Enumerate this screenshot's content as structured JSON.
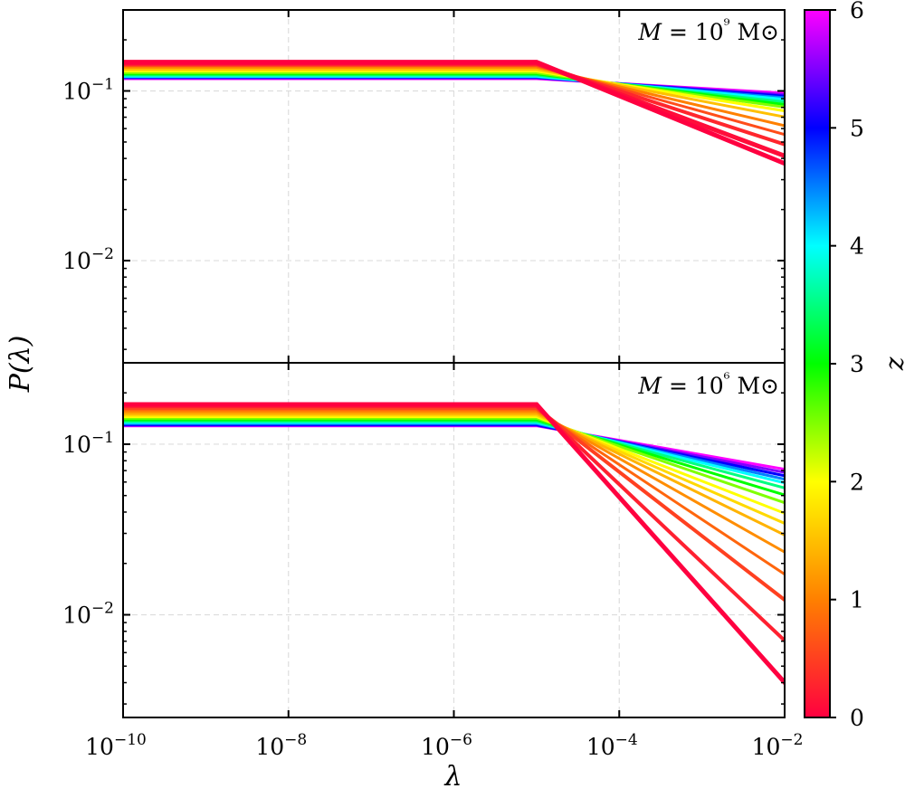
{
  "figure": {
    "ylabel": "P(λ)",
    "xlabel": "λ",
    "colorbar_label": "z"
  },
  "chart_data": [
    {
      "type": "line",
      "panel": "top",
      "annotation": "M = 10⁹ M⊙",
      "x_scale": "log",
      "y_scale": "log",
      "xlim": [
        1e-10,
        0.01
      ],
      "ylim": [
        0.0025,
        0.3
      ],
      "x_ticks": [
        "10−10",
        "10−8",
        "10−6",
        "10−4",
        "10−2"
      ],
      "y_ticks": [
        "10−1",
        "10−2"
      ],
      "grid": true,
      "break_lambda": 1e-05,
      "color_by": "z",
      "curves": [
        {
          "z": 6.0,
          "plateau": 0.118,
          "end": 0.097
        },
        {
          "z": 5.5,
          "plateau": 0.119,
          "end": 0.095
        },
        {
          "z": 5.0,
          "plateau": 0.12,
          "end": 0.093
        },
        {
          "z": 4.5,
          "plateau": 0.121,
          "end": 0.091
        },
        {
          "z": 4.0,
          "plateau": 0.122,
          "end": 0.089
        },
        {
          "z": 3.5,
          "plateau": 0.124,
          "end": 0.086
        },
        {
          "z": 3.0,
          "plateau": 0.126,
          "end": 0.083
        },
        {
          "z": 2.5,
          "plateau": 0.128,
          "end": 0.08
        },
        {
          "z": 2.0,
          "plateau": 0.131,
          "end": 0.076
        },
        {
          "z": 1.5,
          "plateau": 0.134,
          "end": 0.07
        },
        {
          "z": 1.0,
          "plateau": 0.138,
          "end": 0.062
        },
        {
          "z": 0.6,
          "plateau": 0.141,
          "end": 0.055
        },
        {
          "z": 0.3,
          "plateau": 0.144,
          "end": 0.048
        },
        {
          "z": 0.1,
          "plateau": 0.146,
          "end": 0.041
        },
        {
          "z": 0.0,
          "plateau": 0.148,
          "end": 0.037
        }
      ]
    },
    {
      "type": "line",
      "panel": "bottom",
      "annotation": "M = 10⁶ M⊙",
      "x_scale": "log",
      "y_scale": "log",
      "xlim": [
        1e-10,
        0.01
      ],
      "ylim": [
        0.0025,
        0.3
      ],
      "x_ticks": [
        "10−10",
        "10−8",
        "10−6",
        "10−4",
        "10−2"
      ],
      "y_ticks": [
        "10−1",
        "10−2"
      ],
      "grid": true,
      "break_lambda": 1e-05,
      "color_by": "z",
      "curves": [
        {
          "z": 6.0,
          "plateau": 0.128,
          "end": 0.071
        },
        {
          "z": 5.5,
          "plateau": 0.129,
          "end": 0.068
        },
        {
          "z": 5.0,
          "plateau": 0.13,
          "end": 0.065
        },
        {
          "z": 4.5,
          "plateau": 0.132,
          "end": 0.062
        },
        {
          "z": 4.0,
          "plateau": 0.134,
          "end": 0.059
        },
        {
          "z": 3.5,
          "plateau": 0.136,
          "end": 0.055
        },
        {
          "z": 3.0,
          "plateau": 0.139,
          "end": 0.05
        },
        {
          "z": 2.5,
          "plateau": 0.142,
          "end": 0.045
        },
        {
          "z": 2.0,
          "plateau": 0.145,
          "end": 0.039
        },
        {
          "z": 1.7,
          "plateau": 0.148,
          "end": 0.034
        },
        {
          "z": 1.4,
          "plateau": 0.151,
          "end": 0.029
        },
        {
          "z": 1.1,
          "plateau": 0.155,
          "end": 0.023
        },
        {
          "z": 0.8,
          "plateau": 0.159,
          "end": 0.017
        },
        {
          "z": 0.5,
          "plateau": 0.163,
          "end": 0.012
        },
        {
          "z": 0.25,
          "plateau": 0.167,
          "end": 0.0069
        },
        {
          "z": 0.0,
          "plateau": 0.171,
          "end": 0.0039
        }
      ]
    }
  ],
  "colorbar": {
    "label": "z",
    "range": [
      0,
      6
    ],
    "ticks": [
      "0",
      "1",
      "2",
      "3",
      "4",
      "5",
      "6"
    ],
    "colormap": [
      "#ff0040",
      "#ff8000",
      "#ffff00",
      "#00ff00",
      "#00ffff",
      "#0000ff",
      "#ff00ff"
    ]
  }
}
